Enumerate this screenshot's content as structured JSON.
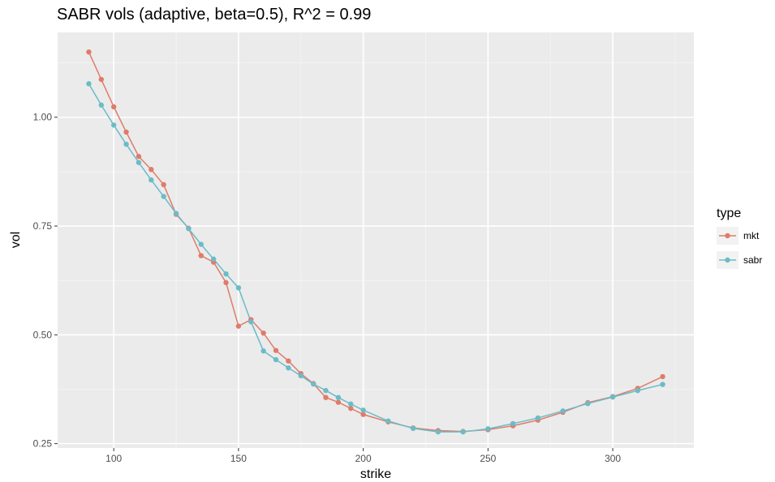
{
  "chart_data": {
    "type": "line",
    "title": "SABR vols (adaptive, beta=0.5), R^2 = 0.99",
    "xlabel": "strike",
    "ylabel": "vol",
    "xlim": [
      77.5,
      332.5
    ],
    "ylim": [
      0.24,
      1.195
    ],
    "xticks": [
      100,
      150,
      200,
      250,
      300
    ],
    "xtick_labels": [
      "100",
      "150",
      "200",
      "250",
      "300"
    ],
    "yticks": [
      0.25,
      0.5,
      0.75,
      1.0
    ],
    "ytick_labels": [
      "0.25",
      "0.50",
      "0.75",
      "1.00"
    ],
    "grid": true,
    "legend": {
      "title": "type",
      "position": "right"
    },
    "series": [
      {
        "name": "mkt",
        "color": "#e07b6a",
        "x": [
          90,
          95,
          100,
          105,
          110,
          115,
          120,
          125,
          130,
          135,
          140,
          145,
          150,
          155,
          160,
          165,
          170,
          175,
          180,
          185,
          190,
          195,
          200,
          210,
          220,
          230,
          240,
          250,
          260,
          270,
          280,
          290,
          300,
          310,
          320
        ],
        "y": [
          1.15,
          1.087,
          1.024,
          0.966,
          0.91,
          0.88,
          0.845,
          0.777,
          0.745,
          0.682,
          0.667,
          0.62,
          0.52,
          0.535,
          0.504,
          0.464,
          0.44,
          0.411,
          0.388,
          0.356,
          0.345,
          0.331,
          0.317,
          0.3,
          0.286,
          0.28,
          0.278,
          0.282,
          0.291,
          0.304,
          0.322,
          0.344,
          0.358,
          0.377,
          0.404
        ]
      },
      {
        "name": "sabr",
        "color": "#6bbcc7",
        "x": [
          90,
          95,
          100,
          105,
          110,
          115,
          120,
          125,
          130,
          135,
          140,
          145,
          150,
          155,
          160,
          165,
          170,
          175,
          180,
          185,
          190,
          195,
          200,
          210,
          220,
          230,
          240,
          250,
          260,
          270,
          280,
          290,
          300,
          310,
          320
        ],
        "y": [
          1.077,
          1.028,
          0.982,
          0.938,
          0.896,
          0.856,
          0.818,
          0.779,
          0.744,
          0.708,
          0.674,
          0.64,
          0.608,
          0.53,
          0.463,
          0.443,
          0.424,
          0.406,
          0.387,
          0.372,
          0.356,
          0.341,
          0.327,
          0.302,
          0.285,
          0.277,
          0.277,
          0.284,
          0.296,
          0.309,
          0.325,
          0.342,
          0.357,
          0.372,
          0.386
        ]
      }
    ]
  }
}
